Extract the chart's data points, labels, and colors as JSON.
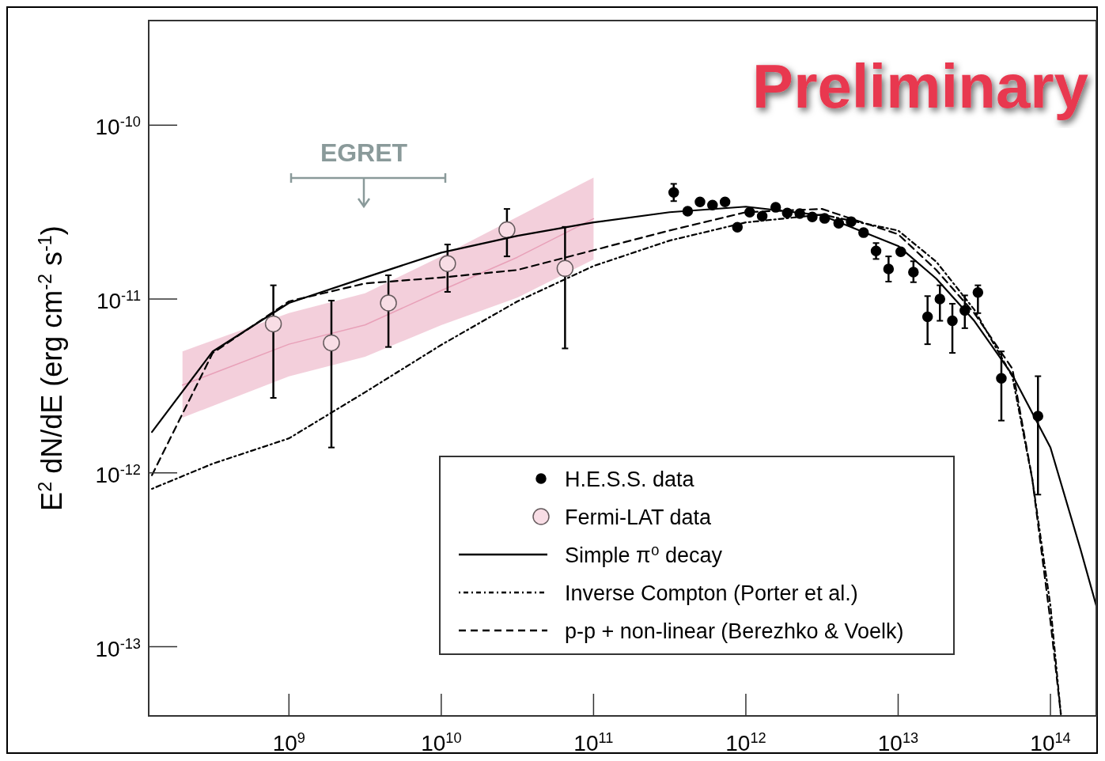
{
  "chart_data": {
    "type": "scatter",
    "ylabel": "E$^{2}$ dN/dE (erg cm$^{-2}$ s$^{-1}$)",
    "log": "xy",
    "grid": false,
    "legend": "bottom right",
    "xlim": [
      120000000.0,
      200000000000000.0
    ],
    "ylim": [
      4e-14,
      4e-10
    ],
    "xticks": [
      {
        "value": 1000000000.0,
        "label": "10$^{9}$"
      },
      {
        "value": 10000000000.0,
        "label": "10$^{10}$"
      },
      {
        "value": 100000000000.0,
        "label": "10$^{11}$"
      },
      {
        "value": 1000000000000.0,
        "label": "10$^{12}$"
      },
      {
        "value": 10000000000000.0,
        "label": "10$^{13}$"
      },
      {
        "value": 100000000000000.0,
        "label": "10$^{14}$"
      }
    ],
    "yticks": [
      {
        "value": 1e-13,
        "label": "10$^{-13}$"
      },
      {
        "value": 1e-12,
        "label": "10$^{-12}$"
      },
      {
        "value": 1e-11,
        "label": "10$^{-11}$"
      },
      {
        "value": 1e-10,
        "label": "10$^{-10}$"
      }
    ],
    "annotations": [
      "Preliminary",
      "EGRET"
    ],
    "series": [
      {
        "type": "line",
        "color": "#e8a0b8",
        "line_style": "solid",
        "marker": "none",
        "x": [
          200000000.0,
          1000000000.0,
          3160000000.0,
          10000000000.0,
          31600000000.0,
          100000000000.0
        ],
        "values": [
          3.2e-12,
          5.5e-12,
          7.1e-12,
          1.12e-11,
          1.74e-11,
          2.9e-11
        ],
        "lower": [
          2.08e-12,
          3.59e-12,
          4.66e-12,
          7.08e-12,
          1.02e-11,
          1.69e-11
        ],
        "upper": [
          5e-12,
          8.3e-12,
          1.08e-11,
          1.76e-11,
          2.97e-11,
          5e-11
        ]
      },
      {
        "name": "H.E.S.S. data",
        "color": "#000000",
        "marker": "circle",
        "x": [
          336000000000.0,
          415000000000.0,
          500000000000.0,
          604000000000.0,
          730000000000.0,
          880000000000.0,
          1060000000000.0,
          1280000000000.0,
          1570000000000.0,
          1870000000000.0,
          2260000000000.0,
          2730000000000.0,
          3290000000000.0,
          4070000000000.0,
          4910000000000.0,
          5930000000000.0,
          7160000000000.0,
          8650000000000.0,
          10400000000000.0,
          12600000000000.0,
          15600000000000.0,
          18800000000000.0,
          22700000000000.0,
          27400000000000.0,
          33400000000000.0,
          47600000000000.0,
          82800000000000.0
        ],
        "values": [
          4.11e-11,
          3.2e-11,
          3.62e-11,
          3.47e-11,
          3.62e-11,
          2.59e-11,
          3.16e-11,
          3e-11,
          3.37e-11,
          3.13e-11,
          3.1e-11,
          2.97e-11,
          2.91e-11,
          2.73e-11,
          2.79e-11,
          2.41e-11,
          1.89e-11,
          1.49e-11,
          1.87e-11,
          1.43e-11,
          7.9e-12,
          1e-11,
          7.5e-12,
          8.6e-12,
          1.09e-11,
          3.5e-12,
          2.12e-12
        ],
        "errors": [
          [
            3.66e-11,
            4.6e-11
          ],
          null,
          null,
          null,
          null,
          null,
          null,
          null,
          null,
          null,
          null,
          null,
          null,
          null,
          null,
          null,
          [
            1.7e-11,
            2.1e-11
          ],
          [
            1.26e-11,
            1.76e-11
          ],
          null,
          [
            1.25e-11,
            1.65e-11
          ],
          [
            5.5e-12,
            1.04e-11
          ],
          [
            7.5e-12,
            1.2e-11
          ],
          [
            4.9e-12,
            9.4e-12
          ],
          [
            6.8e-12,
            1.05e-11
          ],
          [
            8.3e-12,
            1.2e-11
          ],
          [
            2e-12,
            5e-12
          ],
          [
            7.5e-13,
            3.6e-12
          ]
        ]
      },
      {
        "name": "Fermi-LAT data",
        "color": "#f8dde5",
        "marker": "circle",
        "x": [
          790000000.0,
          1900000000.0,
          4500000000.0,
          11000000000.0,
          27000000000.0,
          65000000000.0
        ],
        "values": [
          7.2e-12,
          5.6e-12,
          9.5e-12,
          1.6e-11,
          2.5e-11,
          1.5e-11
        ],
        "errors": [
          [
            2.7e-12,
            1.2e-11
          ],
          [
            1.4e-12,
            9.8e-12
          ],
          [
            5.3e-12,
            1.37e-11
          ],
          [
            1.1e-11,
            2.06e-11
          ],
          [
            1.76e-11,
            3.3e-11
          ],
          [
            5.2e-12,
            2.6e-11
          ]
        ]
      },
      {
        "type": "line",
        "name": "Simple π⁰ decay",
        "color": "#000000",
        "line_style": "solid",
        "marker": "none",
        "x": [
          126000000.0,
          316000000.0,
          1000000000.0,
          3160000000.0,
          10000000000.0,
          31600000000.0,
          100000000000.0,
          316000000000.0,
          1000000000000.0,
          3160000000000.0,
          10000000000000.0,
          17800000000000.0,
          31600000000000.0,
          56200000000000.0,
          100000000000000.0,
          158000000000000.0,
          200000000000000.0
        ],
        "values": [
          1.72e-12,
          5e-12,
          9.5e-12,
          1.33e-11,
          1.85e-11,
          2.31e-11,
          2.76e-11,
          3.16e-11,
          3.4e-11,
          3.03e-11,
          2.02e-11,
          1.31e-11,
          7.5e-12,
          3.66e-12,
          1.4e-12,
          3.6e-13,
          1.72e-13
        ]
      },
      {
        "type": "line",
        "name": "Inverse Compton (Porter et al.)",
        "color": "#000000",
        "line_style": "dotted",
        "marker": "none",
        "x": [
          126000000.0,
          316000000.0,
          1000000000.0,
          3160000000.0,
          10000000000.0,
          31600000000.0,
          100000000000.0,
          316000000000.0,
          1000000000000.0,
          3160000000000.0,
          10000000000000.0,
          17800000000000.0,
          31600000000000.0,
          56200000000000.0,
          76000000000000.0,
          100000000000000.0,
          117000000000000.0
        ],
        "values": [
          8.1e-13,
          1.13e-12,
          1.58e-12,
          2.91e-12,
          5.45e-12,
          9.7e-12,
          1.55e-11,
          2.17e-11,
          2.76e-11,
          3.06e-11,
          2.48e-11,
          1.64e-11,
          8.7e-12,
          3.59e-12,
          9.2e-13,
          1.72e-13,
          4.1e-14
        ]
      },
      {
        "type": "line",
        "name": "p-p + non-linear (Berezhko & Voelk)",
        "color": "#000000",
        "line_style": "dashed",
        "marker": "none",
        "x": [
          126000000.0,
          316000000.0,
          1000000000.0,
          3160000000.0,
          10000000000.0,
          31600000000.0,
          100000000000.0,
          316000000000.0,
          1000000000000.0,
          3160000000000.0,
          10000000000000.0,
          17800000000000.0,
          31600000000000.0,
          56200000000000.0,
          76000000000000.0,
          100000000000000.0,
          117000000000000.0
        ],
        "values": [
          9.7e-13,
          4.9e-12,
          9.7e-12,
          1.23e-11,
          1.33e-11,
          1.47e-11,
          1.91e-11,
          2.48e-11,
          3.16e-11,
          3.3e-11,
          2.36e-11,
          1.47e-11,
          8.3e-12,
          3.98e-12,
          9.2e-13,
          1.4e-13,
          4.1e-14
        ]
      }
    ]
  }
}
